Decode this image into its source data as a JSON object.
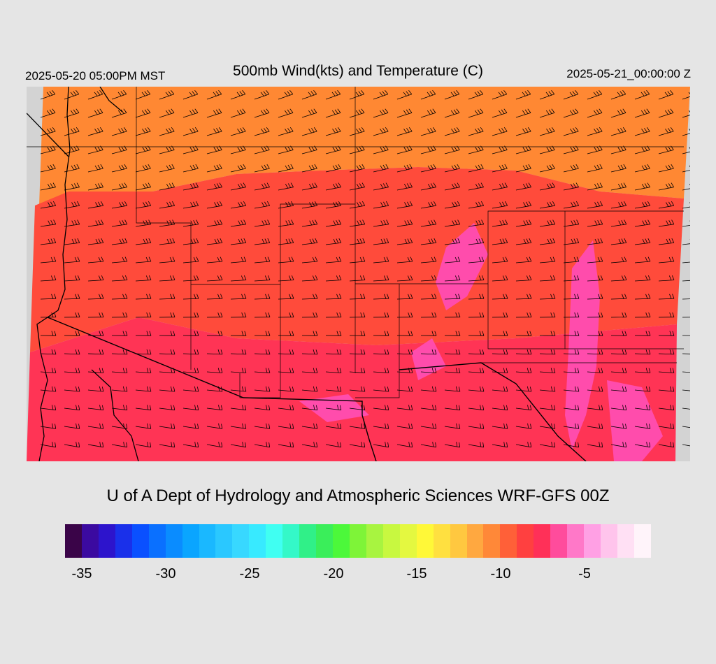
{
  "header": {
    "valid_time": "2025-05-20 05:00PM MST",
    "title": "500mb Wind(kts) and Temperature (C)",
    "init_time": "2025-05-21_00:00:00 Z"
  },
  "footer": {
    "credit": "U of A Dept of Hydrology and Atmospheric Sciences WRF-GFS 00Z"
  },
  "map": {
    "field": "500mb temperature (C) with wind barbs (kts)",
    "background_color": "#d3d3d3",
    "border_color": "#000000",
    "temperature_zones": [
      {
        "name": "north",
        "temp_c": -11,
        "color": "#ff8833"
      },
      {
        "name": "central",
        "temp_c": -10,
        "color": "#ff4b3b"
      },
      {
        "name": "south",
        "temp_c": -9,
        "color": "#ff3455"
      },
      {
        "name": "warm-pockets",
        "temp_c": -7,
        "color": "#ff4cac"
      }
    ]
  },
  "colorbar": {
    "colors": [
      "#3a0448",
      "#3b0aa0",
      "#2d14cc",
      "#1a30ea",
      "#0a50ff",
      "#0a70ff",
      "#0a8cff",
      "#0aa5ff",
      "#1ab8ff",
      "#2ac8ff",
      "#38d8ff",
      "#38eaff",
      "#40fff2",
      "#34f8c8",
      "#30f088",
      "#3aee5a",
      "#4cf83a",
      "#7ef438",
      "#a8f440",
      "#c8f840",
      "#e4f840",
      "#fff838",
      "#ffe040",
      "#ffc840",
      "#ffa840",
      "#ff8838",
      "#ff6038",
      "#ff4040",
      "#ff3058",
      "#ff4c9c",
      "#ff78c8",
      "#ffa0e4",
      "#ffc4ec",
      "#ffe0f4",
      "#fff4fa"
    ],
    "tick_labels": [
      "-35",
      "-30",
      "-25",
      "-20",
      "-15",
      "-10",
      "-5"
    ]
  }
}
